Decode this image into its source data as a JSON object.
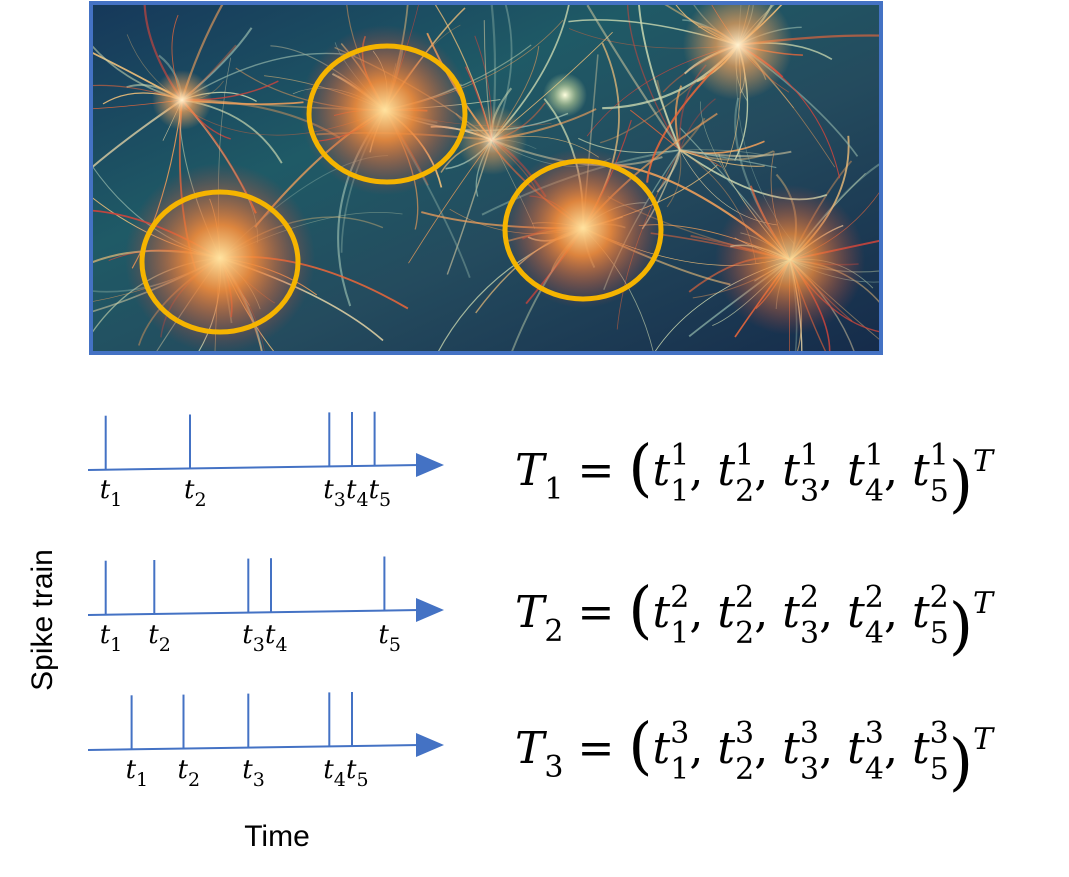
{
  "figure": {
    "image_alt": "neuron network illustration",
    "highlight_color": "#F5B400",
    "frame_color": "#4472C4",
    "axis_color": "#4472C4"
  },
  "labels": {
    "y_axis": "Spike train",
    "x_axis": "Time"
  },
  "trains": [
    {
      "id": 1,
      "spikes": [
        0.03,
        0.29,
        0.72,
        0.79,
        0.86
      ],
      "tick_labels": [
        "1",
        "2",
        "3",
        "4",
        "5"
      ],
      "equation": {
        "lhs": "T",
        "lhs_sub": "1",
        "sup": "1",
        "vars": [
          "1",
          "2",
          "3",
          "4",
          "5"
        ],
        "transpose": "T"
      }
    },
    {
      "id": 2,
      "spikes": [
        0.03,
        0.18,
        0.47,
        0.54,
        0.89
      ],
      "tick_labels": [
        "1",
        "2",
        "3",
        "4",
        "5"
      ],
      "equation": {
        "lhs": "T",
        "lhs_sub": "2",
        "sup": "2",
        "vars": [
          "1",
          "2",
          "3",
          "4",
          "5"
        ],
        "transpose": "T"
      }
    },
    {
      "id": 3,
      "spikes": [
        0.11,
        0.27,
        0.47,
        0.72,
        0.79
      ],
      "tick_labels": [
        "1",
        "2",
        "3",
        "4",
        "5"
      ],
      "equation": {
        "lhs": "T",
        "lhs_sub": "3",
        "sup": "3",
        "vars": [
          "1",
          "2",
          "3",
          "4",
          "5"
        ],
        "transpose": "T"
      }
    }
  ]
}
